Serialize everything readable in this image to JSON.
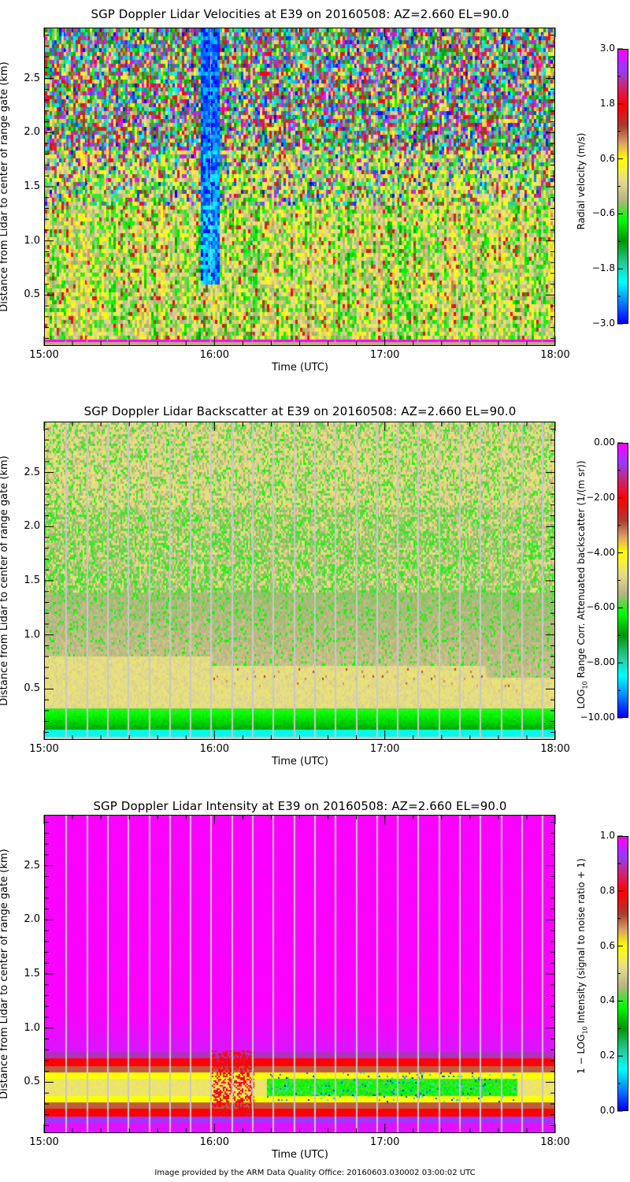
{
  "chart_data": [
    {
      "type": "heatmap",
      "title": "SGP Doppler Lidar Velocities at E39 on 20160508: AZ=2.660 EL=90.0",
      "xlabel": "Time (UTC)",
      "ylabel": "Distance from Lidar to center of range gate (km)",
      "xlim": [
        "15:00",
        "18:00"
      ],
      "ylim": [
        0.03,
        2.97
      ],
      "x_ticks": [
        "15:00",
        "16:00",
        "17:00",
        "18:00"
      ],
      "y_ticks": [
        "0.5",
        "1.0",
        "1.5",
        "2.0",
        "2.5"
      ],
      "colorbar": {
        "label": "Radial velocity (m/s)",
        "range": [
          -3.0,
          3.0
        ],
        "ticks": [
          "3.0",
          "1.8",
          "0.6",
          "-0.6",
          "-1.8",
          "-3.0"
        ]
      },
      "pattern": "noisy above ~1.8 km; mixed green/yellow below 1.5 km; strong negative (blue) column near 15:55"
    },
    {
      "type": "heatmap",
      "title": "SGP Doppler Lidar Backscatter at E39 on 20160508: AZ=2.660 EL=90.0",
      "xlabel": "Time (UTC)",
      "ylabel": "Distance from Lidar to center of range gate (km)",
      "xlim": [
        "15:00",
        "18:00"
      ],
      "ylim": [
        0.03,
        2.97
      ],
      "x_ticks": [
        "15:00",
        "16:00",
        "17:00",
        "18:00"
      ],
      "y_ticks": [
        "0.5",
        "1.0",
        "1.5",
        "2.0",
        "2.5"
      ],
      "colorbar": {
        "label_prefix": "LOG",
        "label_sub": "10",
        "label_rest": " Range Corr. Attenuated backscatter (1/(m sr))",
        "range": [
          -10.0,
          0.0
        ],
        "ticks": [
          "0.00",
          "-2.00",
          "-4.00",
          "-6.00",
          "-8.00",
          "-10.00"
        ]
      },
      "pattern": "green near surface (~0.15 km), tan/yellow layer ~0.5-0.8 km, noisy green/tan aloft"
    },
    {
      "type": "heatmap",
      "title": "SGP Doppler Lidar Intensity at E39 on 20160508: AZ=2.660 EL=90.0",
      "xlabel": "Time (UTC)",
      "ylabel": "Distance from Lidar to center of range gate (km)",
      "xlim": [
        "15:00",
        "18:00"
      ],
      "ylim": [
        0.03,
        2.97
      ],
      "x_ticks": [
        "15:00",
        "16:00",
        "17:00",
        "18:00"
      ],
      "y_ticks": [
        "0.5",
        "1.0",
        "1.5",
        "2.0",
        "2.5"
      ],
      "colorbar": {
        "label_a": "1 − LOG",
        "label_sub": "10",
        "label_b": " Intensity (signal to noise ratio + 1)",
        "range": [
          0.0,
          1.0
        ],
        "ticks": [
          "1.0",
          "0.8",
          "0.6",
          "0.4",
          "0.2",
          "0.0"
        ]
      },
      "pattern": "magenta background; red/yellow band ~0.3-0.7 km; green core 16:20-17:50"
    }
  ],
  "footer": "Image provided by the ARM Data Quality Office: 20160603.030002 03:00:02 UTC"
}
